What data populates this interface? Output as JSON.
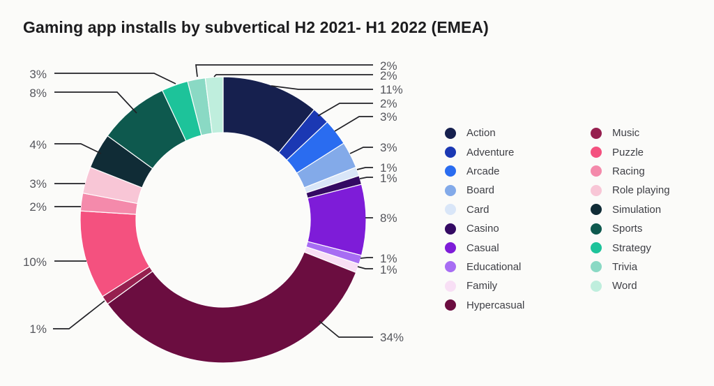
{
  "title": "Gaming app installs by subvertical H2 2021- H1 2022 (EMEA)",
  "colors": {
    "background": "#fbfbf9",
    "title_text": "#1c1c1e",
    "legend_text": "#3e3f45",
    "percent_label_text": "#55565c",
    "leader_line": "#212126",
    "slice_separator": "#ffffff"
  },
  "chart_data": {
    "type": "pie",
    "subtype": "donut",
    "title": "Gaming app installs by subvertical H2 2021- H1 2022 (EMEA)",
    "unit": "%",
    "start_angle": "12-oclock",
    "direction": "clockwise",
    "legend": {
      "position": "right",
      "column_split": 10
    },
    "slices": [
      {
        "name": "Action",
        "value": 11,
        "label": "11%",
        "color": "#16204e"
      },
      {
        "name": "Adventure",
        "value": 2,
        "label": "2%",
        "color": "#1b38b3"
      },
      {
        "name": "Arcade",
        "value": 3,
        "label": "3%",
        "color": "#2a6cf0"
      },
      {
        "name": "Board",
        "value": 3,
        "label": "3%",
        "color": "#83aae9"
      },
      {
        "name": "Card",
        "value": 1,
        "label": "1%",
        "color": "#d9e6f8"
      },
      {
        "name": "Casino",
        "value": 1,
        "label": "1%",
        "color": "#340a63"
      },
      {
        "name": "Casual",
        "value": 8,
        "label": "8%",
        "color": "#7e1cd8"
      },
      {
        "name": "Educational",
        "value": 1,
        "label": "1%",
        "color": "#a76df3"
      },
      {
        "name": "Family",
        "value": 1,
        "label": "1%",
        "color": "#f8dff5"
      },
      {
        "name": "Hypercasual",
        "value": 34,
        "label": "34%",
        "color": "#6b0d40"
      },
      {
        "name": "Music",
        "value": 1,
        "label": "1%",
        "color": "#96204f"
      },
      {
        "name": "Puzzle",
        "value": 10,
        "label": "10%",
        "color": "#f4517f"
      },
      {
        "name": "Racing",
        "value": 2,
        "label": "2%",
        "color": "#f48aab"
      },
      {
        "name": "Role playing",
        "value": 3,
        "label": "3%",
        "color": "#f8c6d6"
      },
      {
        "name": "Simulation",
        "value": 4,
        "label": "4%",
        "color": "#102c36"
      },
      {
        "name": "Sports",
        "value": 8,
        "label": "8%",
        "color": "#0e594e"
      },
      {
        "name": "Strategy",
        "value": 3,
        "label": "3%",
        "color": "#1dc39a"
      },
      {
        "name": "Trivia",
        "value": 2,
        "label": "2%",
        "color": "#8ad9c4"
      },
      {
        "name": "Word",
        "value": 2,
        "label": "2%",
        "color": "#bfeedd"
      }
    ]
  }
}
